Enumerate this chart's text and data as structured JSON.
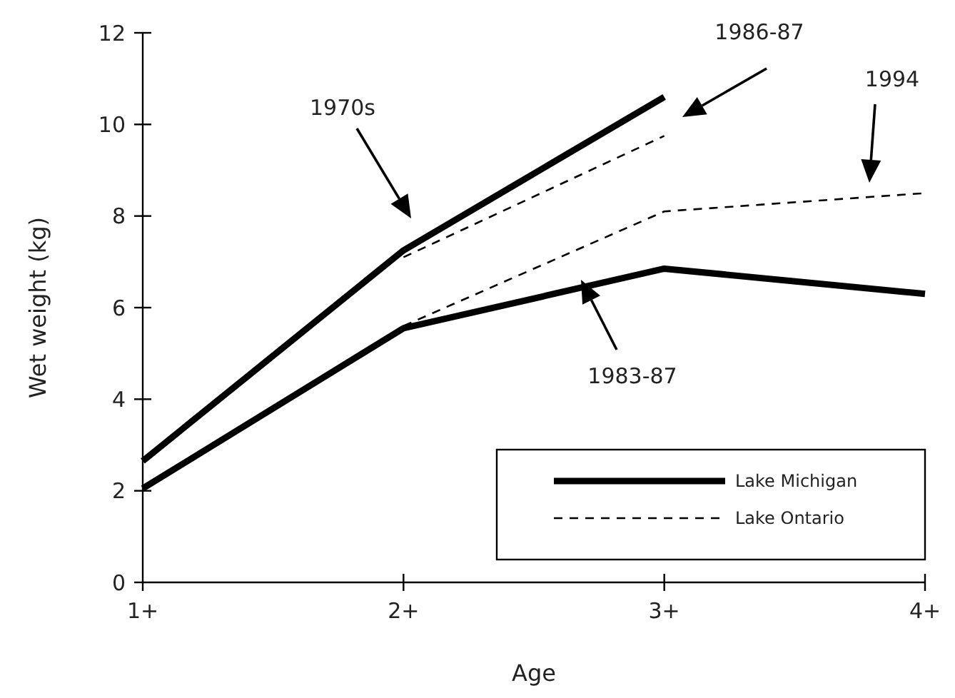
{
  "chart_data": {
    "type": "line",
    "xlabel": "Age",
    "ylabel": "Wet weight (kg)",
    "categories": [
      "1+",
      "2+",
      "3+",
      "4+"
    ],
    "ylim": [
      0,
      12
    ],
    "yticks": [
      0,
      2,
      4,
      6,
      8,
      10,
      12
    ],
    "legend": "bottom right",
    "grid": false,
    "marker": "none",
    "series": [
      {
        "name": "Lake Michigan",
        "color": "#000000",
        "line_style": "solid",
        "values": [
          2.65,
          7.25,
          10.6,
          null
        ]
      },
      {
        "color": "#000000",
        "line_style": "solid",
        "values": [
          2.05,
          5.55,
          6.85,
          6.3
        ]
      },
      {
        "name": "Lake Ontario",
        "color": "#000000",
        "line_style": "dashed",
        "values": [
          null,
          7.1,
          9.75,
          null
        ]
      },
      {
        "color": "#000000",
        "line_style": "dashed",
        "values": [
          null,
          5.6,
          8.1,
          8.5
        ]
      }
    ],
    "annotations": [
      "1970s",
      "1986-87",
      "1994",
      "1983-87"
    ]
  }
}
